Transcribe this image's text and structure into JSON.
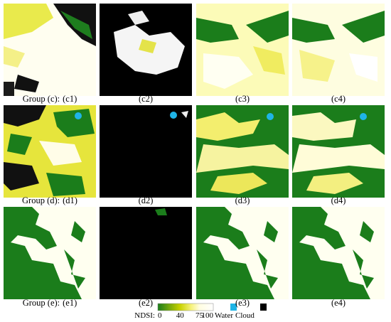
{
  "rows": [
    {
      "group": "Group (c):",
      "captions": [
        "(c1)",
        "(c2)",
        "(c3)",
        "(c4)"
      ]
    },
    {
      "group": "Group (d):",
      "captions": [
        "(d1)",
        "(d2)",
        "(d3)",
        "(d4)"
      ]
    },
    {
      "group": "Group (e):",
      "captions": [
        "(e1)",
        "(e2)",
        "(e3)",
        "(e4)"
      ]
    }
  ],
  "legend": {
    "title": "NDSI:",
    "ticks": [
      0,
      40,
      75,
      100
    ],
    "water": "Water",
    "cloud": "Cloud"
  }
}
